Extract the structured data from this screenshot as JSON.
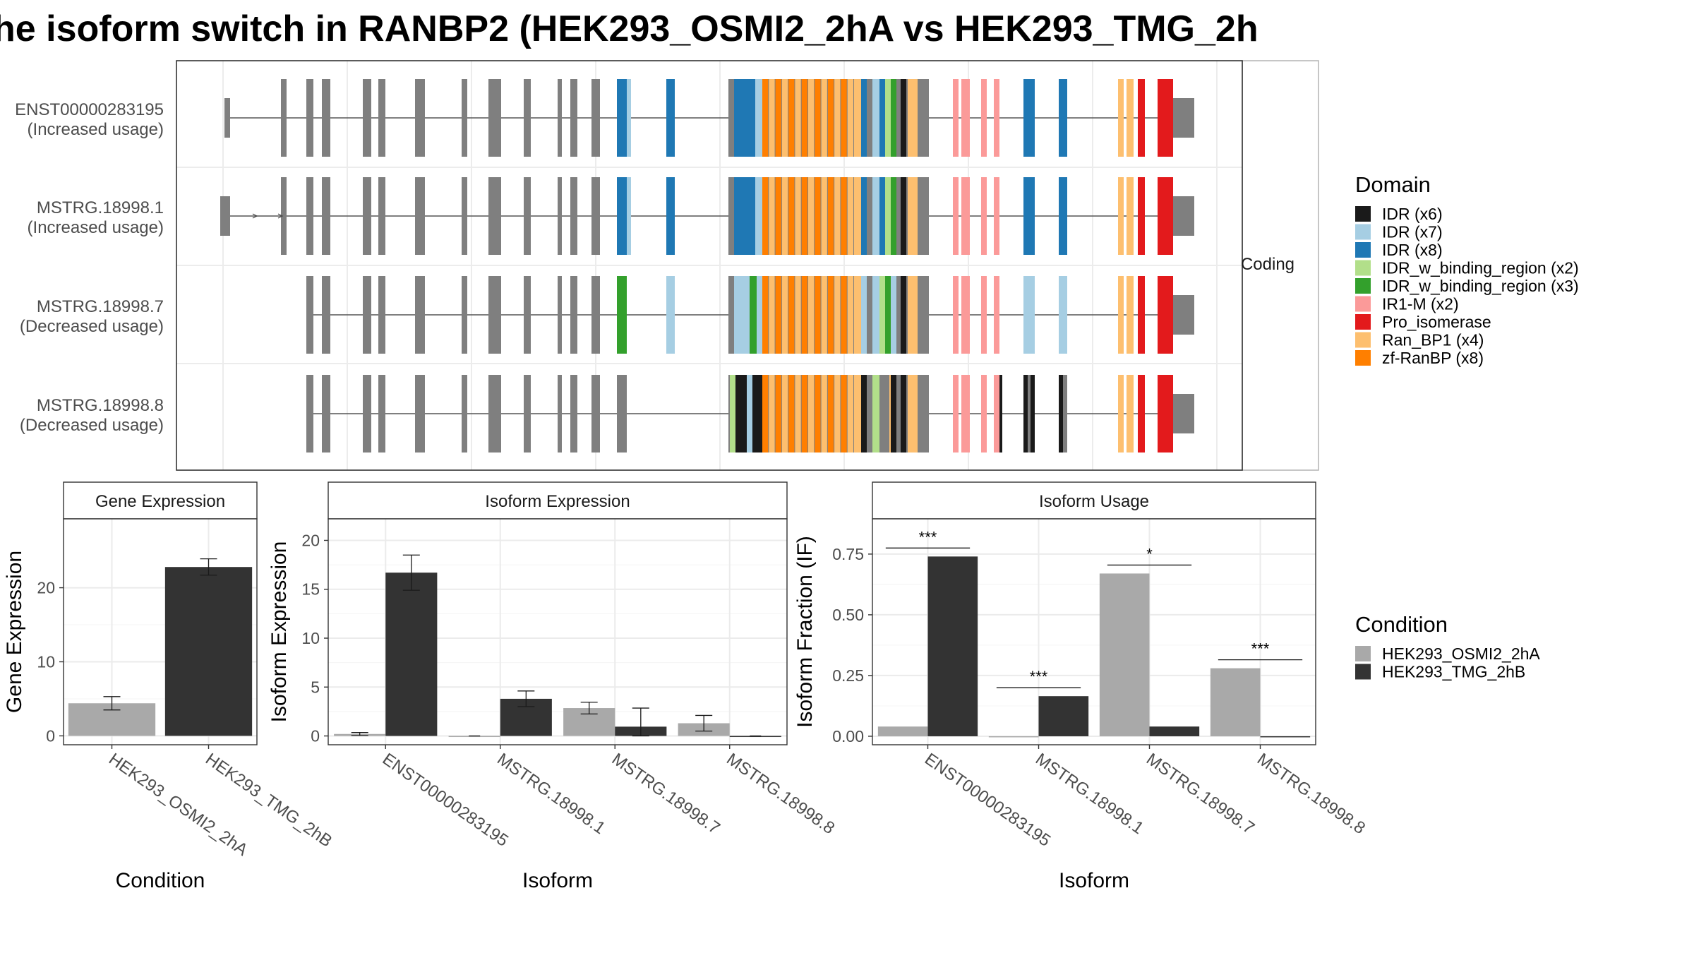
{
  "title": "he isoform switch in RANBP2 (HEK293_OSMI2_2hA vs HEK293_TMG_2h",
  "structure": {
    "strip_label": "Coding",
    "isoforms": [
      {
        "id": "ENST00000283195",
        "usage": "(Increased usage)"
      },
      {
        "id": "MSTRG.18998.1",
        "usage": "(Increased usage)"
      },
      {
        "id": "MSTRG.18998.7",
        "usage": "(Decreased usage)"
      },
      {
        "id": "MSTRG.18998.8",
        "usage": "(Decreased usage)"
      }
    ]
  },
  "domain_legend": {
    "title": "Domain",
    "items": [
      {
        "label": "IDR (x6)",
        "color": "#1a1a1a"
      },
      {
        "label": "IDR (x7)",
        "color": "#a6cee3"
      },
      {
        "label": "IDR (x8)",
        "color": "#1f78b4"
      },
      {
        "label": "IDR_w_binding_region (x2)",
        "color": "#b2df8a"
      },
      {
        "label": "IDR_w_binding_region (x3)",
        "color": "#33a02c"
      },
      {
        "label": "IR1-M (x2)",
        "color": "#fb9a99"
      },
      {
        "label": "Pro_isomerase",
        "color": "#e31a1c"
      },
      {
        "label": "Ran_BP1 (x4)",
        "color": "#fdbf6f"
      },
      {
        "label": "zf-RanBP (x8)",
        "color": "#ff7f00"
      }
    ]
  },
  "condition_legend": {
    "title": "Condition",
    "items": [
      {
        "label": "HEK293_OSMI2_2hA",
        "color": "#a9a9a9"
      },
      {
        "label": "HEK293_TMG_2hB",
        "color": "#333333"
      }
    ]
  },
  "chart_data": [
    {
      "type": "bar",
      "panel": "Gene Expression",
      "xlabel": "Condition",
      "ylabel": "Gene Expression",
      "categories": [
        "HEK293_OSMI2_2hA",
        "HEK293_TMG_2hB"
      ],
      "values": [
        4.4,
        22.8
      ],
      "errors": [
        0.9,
        1.1
      ],
      "ylim": [
        -1.2,
        29.3
      ],
      "yticks": [
        0,
        10,
        20
      ]
    },
    {
      "type": "bar",
      "panel": "Isoform Expression",
      "xlabel": "Isoform",
      "ylabel": "Isoform Expression",
      "categories": [
        "ENST00000283195",
        "MSTRG.18998.1",
        "MSTRG.18998.7",
        "MSTRG.18998.8"
      ],
      "series": [
        {
          "name": "HEK293_OSMI2_2hA",
          "values": [
            0.2,
            0.0,
            2.85,
            1.3
          ],
          "errors": [
            0.15,
            0.0,
            0.6,
            0.8
          ]
        },
        {
          "name": "HEK293_TMG_2hB",
          "values": [
            16.7,
            3.8,
            0.95,
            0.0
          ],
          "errors": [
            1.8,
            0.8,
            1.9,
            0.0
          ]
        }
      ],
      "ylim": [
        -0.9,
        22.2
      ],
      "yticks": [
        0,
        5,
        10,
        15,
        20
      ]
    },
    {
      "type": "bar",
      "panel": "Isoform Usage",
      "xlabel": "Isoform",
      "ylabel": "Isoform Fraction (IF)",
      "categories": [
        "ENST00000283195",
        "MSTRG.18998.1",
        "MSTRG.18998.7",
        "MSTRG.18998.8"
      ],
      "series": [
        {
          "name": "HEK293_OSMI2_2hA",
          "values": [
            0.04,
            0.0,
            0.67,
            0.28
          ]
        },
        {
          "name": "HEK293_TMG_2hB",
          "values": [
            0.74,
            0.165,
            0.04,
            0.0
          ]
        }
      ],
      "significance": [
        "***",
        "***",
        "*",
        "***"
      ],
      "ylim": [
        -0.035,
        0.895
      ],
      "yticks": [
        0.0,
        0.25,
        0.5,
        0.75
      ],
      "yticklabels": [
        "0.00",
        "0.25",
        "0.50",
        "0.75"
      ]
    }
  ]
}
